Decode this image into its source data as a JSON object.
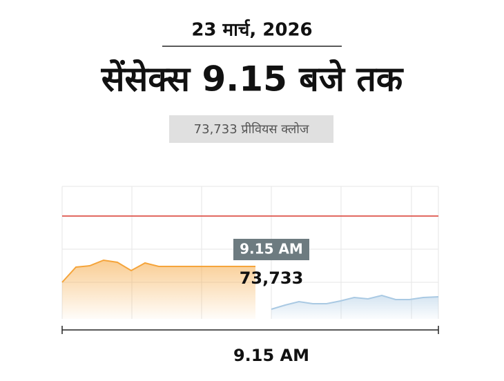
{
  "chart_data": {
    "type": "area",
    "date": "23 मार्च, 2026",
    "title": "सेंसेक्स 9.15 बजे तक",
    "subtitle": "73,733 प्रीवियस क्लोज",
    "annotation": {
      "time": "9.15 AM",
      "value_label": "73,733"
    },
    "x_label": "9.15 AM",
    "xlim": [
      0,
      545
    ],
    "ylim": [
      0,
      192
    ],
    "x_gridlines": [
      0,
      101,
      202,
      303,
      404,
      506,
      545
    ],
    "y_gridlines": [
      53,
      101,
      192
    ],
    "reference_line": {
      "value": 149,
      "color": "#d9372b"
    },
    "series": [
      {
        "color": "#f5a43a",
        "x": [
          0,
          20,
          40,
          60,
          80,
          100,
          120,
          140,
          160,
          280
        ],
        "values": [
          53,
          75,
          77,
          85,
          82,
          70,
          81,
          76,
          76,
          76
        ]
      },
      {
        "color": "#a9c9e3",
        "x": [
          303,
          323,
          343,
          363,
          383,
          403,
          423,
          443,
          463,
          483,
          503,
          523,
          545
        ],
        "values": [
          14,
          20,
          25,
          22,
          22,
          26,
          31,
          29,
          34,
          28,
          28,
          31,
          32
        ]
      }
    ]
  }
}
